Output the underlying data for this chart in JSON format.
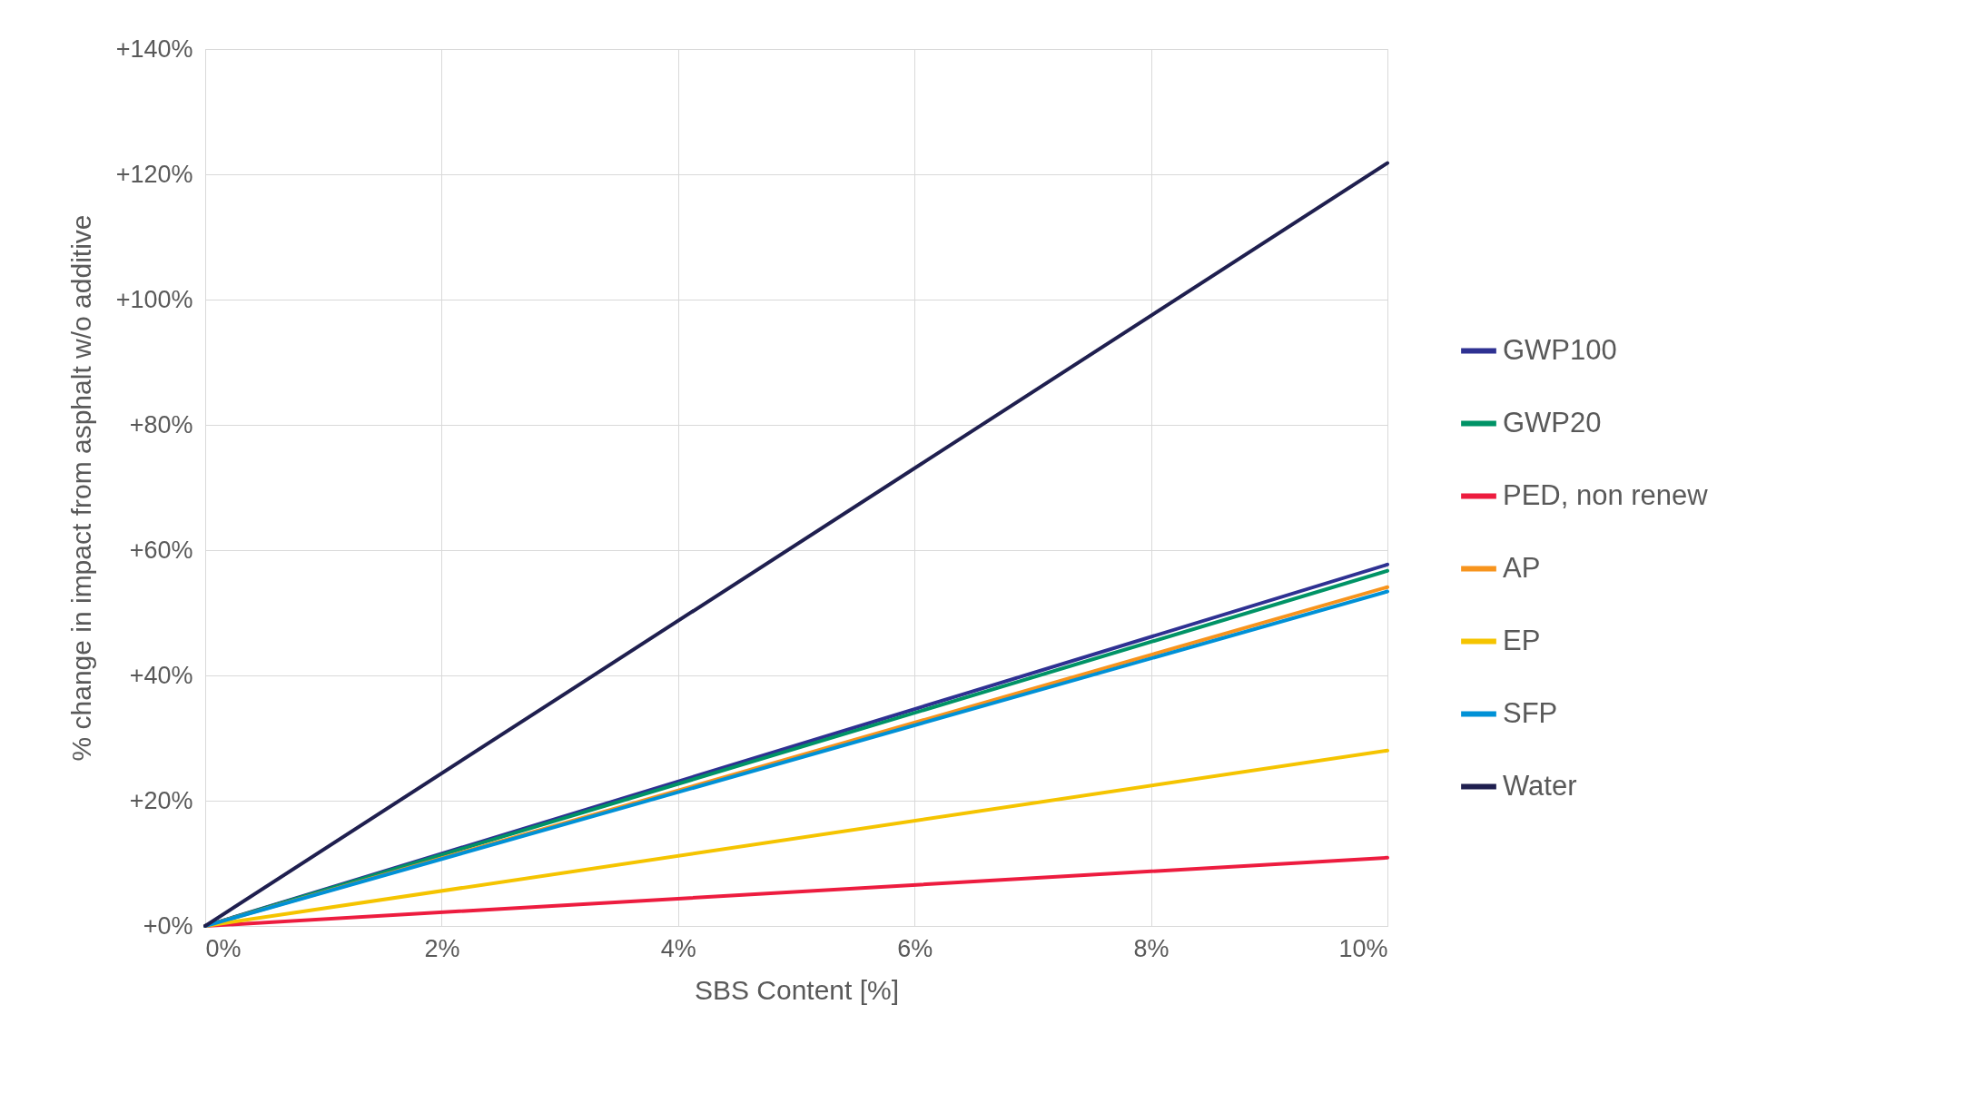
{
  "chart_data": {
    "type": "line",
    "xlabel": "SBS Content [%]",
    "ylabel": "% change in impact from asphalt w/o additive",
    "x": [
      0,
      10
    ],
    "series": [
      {
        "name": "GWP100",
        "color": "#2e3192",
        "values": [
          0,
          57.7
        ]
      },
      {
        "name": "GWP20",
        "color": "#009366",
        "values": [
          0,
          56.7
        ]
      },
      {
        "name": "PED, non renew",
        "color": "#ed1c3f",
        "values": [
          0,
          10.9
        ]
      },
      {
        "name": "AP",
        "color": "#f7941d",
        "values": [
          0,
          54.1
        ]
      },
      {
        "name": "EP",
        "color": "#f5c400",
        "values": [
          0,
          28
        ]
      },
      {
        "name": "SFP",
        "color": "#0091d6",
        "values": [
          0,
          53.4
        ]
      },
      {
        "name": "Water",
        "color": "#1f1f4f",
        "values": [
          0,
          121.8
        ]
      }
    ],
    "xlim": [
      0,
      10
    ],
    "xticks": [
      {
        "value": 0,
        "label": "0%"
      },
      {
        "value": 2,
        "label": "2%"
      },
      {
        "value": 4,
        "label": "4%"
      },
      {
        "value": 6,
        "label": "6%"
      },
      {
        "value": 8,
        "label": "8%"
      },
      {
        "value": 10,
        "label": "10%"
      }
    ],
    "ylim": [
      0,
      140
    ],
    "yticks": [
      {
        "value": 0,
        "label": "+0%"
      },
      {
        "value": 20,
        "label": "+20%"
      },
      {
        "value": 40,
        "label": "+40%"
      },
      {
        "value": 60,
        "label": "+60%"
      },
      {
        "value": 80,
        "label": "+80%"
      },
      {
        "value": 100,
        "label": "+100%"
      },
      {
        "value": 120,
        "label": "+120%"
      },
      {
        "value": 140,
        "label": "+140%"
      }
    ],
    "grid": true,
    "legend": "right",
    "marker": "none",
    "line_style": "solid"
  }
}
